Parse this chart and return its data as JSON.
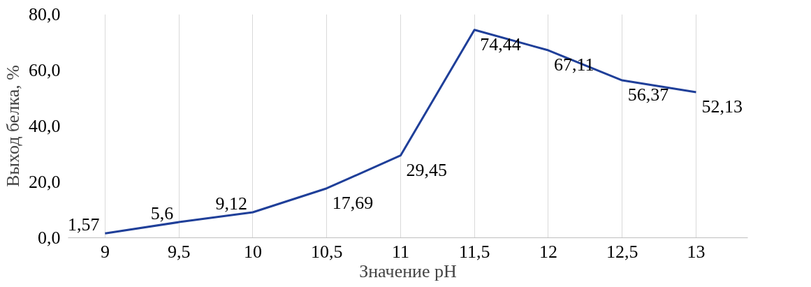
{
  "chart_data": {
    "type": "line",
    "xlabel": "Значение pH",
    "ylabel": "Выход белка, %",
    "categories": [
      "9",
      "9,5",
      "10",
      "10,5",
      "11",
      "11,5",
      "12",
      "12,5",
      "13"
    ],
    "values": [
      1.57,
      5.6,
      9.12,
      17.69,
      29.45,
      74.44,
      67.11,
      56.37,
      52.13
    ],
    "value_labels": [
      "1,57",
      "5,6",
      "9,12",
      "17,69",
      "29,45",
      "74,44",
      "67,11",
      "56,37",
      "52,13"
    ],
    "color": "#1f3f99",
    "ylim": [
      0,
      80
    ],
    "yticks": [
      {
        "value": 0,
        "label": "0,0"
      },
      {
        "value": 20,
        "label": "20,0"
      },
      {
        "value": 40,
        "label": "40,0"
      },
      {
        "value": 60,
        "label": "60,0"
      },
      {
        "value": 80,
        "label": "80,0"
      }
    ],
    "grid": "x",
    "marker": "none",
    "line_style": "solid"
  }
}
